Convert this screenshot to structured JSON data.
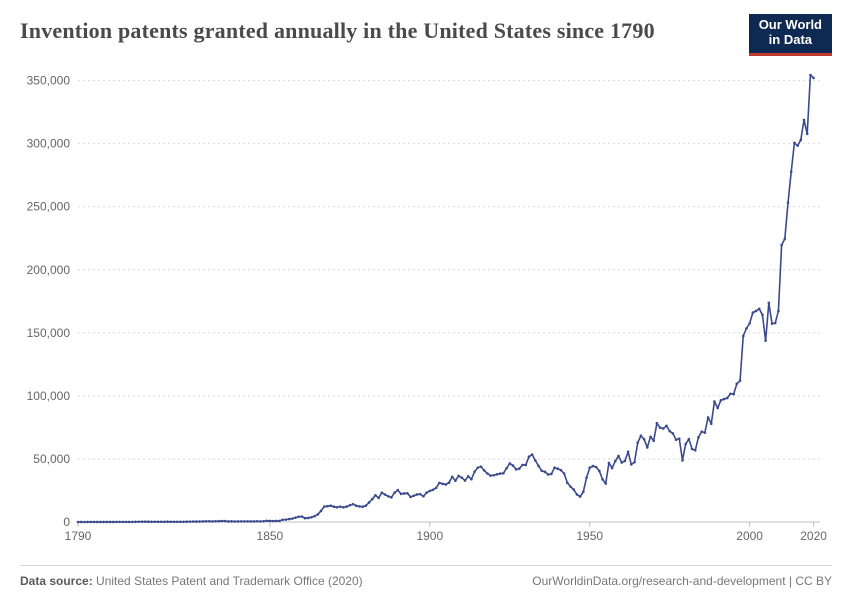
{
  "title": "Invention patents granted annually in the United States since 1790",
  "logo": {
    "line1": "Our World",
    "line2": "in Data"
  },
  "footer": {
    "source_label": "Data source:",
    "source_text": "United States Patent and Trademark Office (2020)",
    "right_text": "OurWorldinData.org/research-and-development | CC BY"
  },
  "chart": {
    "type": "line",
    "line_color": "#3b4a8c",
    "line_width": 1.6,
    "marker_radius": 1.3,
    "grid_color": "#d9d9d9",
    "grid_dash": "2 3",
    "axis_color": "#bfbfbf",
    "tick_color": "#666666",
    "background": "#ffffff",
    "tick_fontsize": 12,
    "xlim": [
      1790,
      2022
    ],
    "ylim": [
      0,
      360000
    ],
    "x_ticks": [
      1790,
      1850,
      1900,
      1950,
      2000,
      2020
    ],
    "x_tick_labels": [
      "1790",
      "1850",
      "1900",
      "1950",
      "2000",
      "2020"
    ],
    "y_ticks": [
      0,
      50000,
      100000,
      150000,
      200000,
      250000,
      300000,
      350000
    ],
    "y_tick_labels": [
      "0",
      "50,000",
      "100,000",
      "150,000",
      "200,000",
      "250,000",
      "300,000",
      "350,000"
    ],
    "data": [
      [
        1790,
        3
      ],
      [
        1791,
        33
      ],
      [
        1792,
        11
      ],
      [
        1793,
        20
      ],
      [
        1794,
        22
      ],
      [
        1795,
        12
      ],
      [
        1796,
        44
      ],
      [
        1797,
        51
      ],
      [
        1798,
        28
      ],
      [
        1799,
        44
      ],
      [
        1800,
        41
      ],
      [
        1801,
        44
      ],
      [
        1802,
        65
      ],
      [
        1803,
        97
      ],
      [
        1804,
        84
      ],
      [
        1805,
        57
      ],
      [
        1806,
        63
      ],
      [
        1807,
        99
      ],
      [
        1808,
        158
      ],
      [
        1809,
        203
      ],
      [
        1810,
        223
      ],
      [
        1811,
        215
      ],
      [
        1812,
        238
      ],
      [
        1813,
        181
      ],
      [
        1814,
        210
      ],
      [
        1815,
        173
      ],
      [
        1816,
        206
      ],
      [
        1817,
        174
      ],
      [
        1818,
        222
      ],
      [
        1819,
        156
      ],
      [
        1820,
        155
      ],
      [
        1821,
        168
      ],
      [
        1822,
        200
      ],
      [
        1823,
        173
      ],
      [
        1824,
        228
      ],
      [
        1825,
        304
      ],
      [
        1826,
        323
      ],
      [
        1827,
        331
      ],
      [
        1828,
        368
      ],
      [
        1829,
        447
      ],
      [
        1830,
        544
      ],
      [
        1831,
        573
      ],
      [
        1832,
        474
      ],
      [
        1833,
        586
      ],
      [
        1834,
        630
      ],
      [
        1835,
        752
      ],
      [
        1836,
        702
      ],
      [
        1837,
        426
      ],
      [
        1838,
        514
      ],
      [
        1839,
        404
      ],
      [
        1840,
        458
      ],
      [
        1841,
        490
      ],
      [
        1842,
        488
      ],
      [
        1843,
        493
      ],
      [
        1844,
        478
      ],
      [
        1845,
        473
      ],
      [
        1846,
        566
      ],
      [
        1847,
        495
      ],
      [
        1848,
        584
      ],
      [
        1849,
        988
      ],
      [
        1850,
        883
      ],
      [
        1851,
        752
      ],
      [
        1852,
        885
      ],
      [
        1853,
        846
      ],
      [
        1854,
        1759
      ],
      [
        1855,
        1881
      ],
      [
        1856,
        2302
      ],
      [
        1857,
        2674
      ],
      [
        1858,
        3455
      ],
      [
        1859,
        4160
      ],
      [
        1860,
        4357
      ],
      [
        1861,
        3020
      ],
      [
        1862,
        3214
      ],
      [
        1863,
        3773
      ],
      [
        1864,
        4630
      ],
      [
        1865,
        6088
      ],
      [
        1866,
        8863
      ],
      [
        1867,
        12277
      ],
      [
        1868,
        12526
      ],
      [
        1869,
        12931
      ],
      [
        1870,
        12137
      ],
      [
        1871,
        11659
      ],
      [
        1872,
        12180
      ],
      [
        1873,
        11616
      ],
      [
        1874,
        12230
      ],
      [
        1875,
        13291
      ],
      [
        1876,
        14169
      ],
      [
        1877,
        12920
      ],
      [
        1878,
        12345
      ],
      [
        1879,
        12133
      ],
      [
        1880,
        12903
      ],
      [
        1881,
        15500
      ],
      [
        1882,
        18091
      ],
      [
        1883,
        21162
      ],
      [
        1884,
        19118
      ],
      [
        1885,
        23285
      ],
      [
        1886,
        21767
      ],
      [
        1887,
        20403
      ],
      [
        1888,
        19551
      ],
      [
        1889,
        23324
      ],
      [
        1890,
        25313
      ],
      [
        1891,
        22312
      ],
      [
        1892,
        22647
      ],
      [
        1893,
        22750
      ],
      [
        1894,
        19855
      ],
      [
        1895,
        20856
      ],
      [
        1896,
        21822
      ],
      [
        1897,
        22067
      ],
      [
        1898,
        20377
      ],
      [
        1899,
        23278
      ],
      [
        1900,
        24644
      ],
      [
        1901,
        25546
      ],
      [
        1902,
        27119
      ],
      [
        1903,
        31029
      ],
      [
        1904,
        30258
      ],
      [
        1905,
        29775
      ],
      [
        1906,
        31170
      ],
      [
        1907,
        35859
      ],
      [
        1908,
        32735
      ],
      [
        1909,
        36561
      ],
      [
        1910,
        35141
      ],
      [
        1911,
        32856
      ],
      [
        1912,
        36198
      ],
      [
        1913,
        33917
      ],
      [
        1914,
        39892
      ],
      [
        1915,
        43118
      ],
      [
        1916,
        43892
      ],
      [
        1917,
        40935
      ],
      [
        1918,
        38452
      ],
      [
        1919,
        36797
      ],
      [
        1920,
        37060
      ],
      [
        1921,
        37798
      ],
      [
        1922,
        38369
      ],
      [
        1923,
        38616
      ],
      [
        1924,
        42584
      ],
      [
        1925,
        46432
      ],
      [
        1926,
        44733
      ],
      [
        1927,
        41717
      ],
      [
        1928,
        42357
      ],
      [
        1929,
        45267
      ],
      [
        1930,
        45226
      ],
      [
        1931,
        51761
      ],
      [
        1932,
        53469
      ],
      [
        1933,
        48774
      ],
      [
        1934,
        44452
      ],
      [
        1935,
        40618
      ],
      [
        1936,
        39782
      ],
      [
        1937,
        37683
      ],
      [
        1938,
        38061
      ],
      [
        1939,
        43073
      ],
      [
        1940,
        42238
      ],
      [
        1941,
        41109
      ],
      [
        1942,
        38449
      ],
      [
        1943,
        31054
      ],
      [
        1944,
        28053
      ],
      [
        1945,
        25695
      ],
      [
        1946,
        21803
      ],
      [
        1947,
        20139
      ],
      [
        1948,
        23963
      ],
      [
        1949,
        35131
      ],
      [
        1950,
        43040
      ],
      [
        1951,
        44326
      ],
      [
        1952,
        43616
      ],
      [
        1953,
        40468
      ],
      [
        1954,
        33809
      ],
      [
        1955,
        30432
      ],
      [
        1956,
        46817
      ],
      [
        1957,
        42744
      ],
      [
        1958,
        48330
      ],
      [
        1959,
        52408
      ],
      [
        1960,
        47170
      ],
      [
        1961,
        48368
      ],
      [
        1962,
        55691
      ],
      [
        1963,
        45679
      ],
      [
        1964,
        47376
      ],
      [
        1965,
        62857
      ],
      [
        1966,
        68406
      ],
      [
        1967,
        65652
      ],
      [
        1968,
        59103
      ],
      [
        1969,
        67557
      ],
      [
        1970,
        64429
      ],
      [
        1971,
        78317
      ],
      [
        1972,
        74810
      ],
      [
        1973,
        74143
      ],
      [
        1974,
        76278
      ],
      [
        1975,
        72000
      ],
      [
        1976,
        70226
      ],
      [
        1977,
        65269
      ],
      [
        1978,
        66102
      ],
      [
        1979,
        48854
      ],
      [
        1980,
        61819
      ],
      [
        1981,
        65770
      ],
      [
        1982,
        57888
      ],
      [
        1983,
        56860
      ],
      [
        1984,
        67200
      ],
      [
        1985,
        71661
      ],
      [
        1986,
        70860
      ],
      [
        1987,
        82952
      ],
      [
        1988,
        77924
      ],
      [
        1989,
        95537
      ],
      [
        1990,
        90365
      ],
      [
        1991,
        96511
      ],
      [
        1992,
        97444
      ],
      [
        1993,
        98342
      ],
      [
        1994,
        101676
      ],
      [
        1995,
        101419
      ],
      [
        1996,
        109645
      ],
      [
        1997,
        111984
      ],
      [
        1998,
        147517
      ],
      [
        1999,
        153485
      ],
      [
        2000,
        157494
      ],
      [
        2001,
        166035
      ],
      [
        2002,
        167331
      ],
      [
        2003,
        169023
      ],
      [
        2004,
        164290
      ],
      [
        2005,
        143806
      ],
      [
        2006,
        173772
      ],
      [
        2007,
        157282
      ],
      [
        2008,
        157772
      ],
      [
        2009,
        167349
      ],
      [
        2010,
        219614
      ],
      [
        2011,
        224505
      ],
      [
        2012,
        253155
      ],
      [
        2013,
        277835
      ],
      [
        2014,
        300677
      ],
      [
        2015,
        298407
      ],
      [
        2016,
        303049
      ],
      [
        2017,
        318829
      ],
      [
        2018,
        307759
      ],
      [
        2019,
        354430
      ],
      [
        2020,
        352066
      ]
    ]
  }
}
